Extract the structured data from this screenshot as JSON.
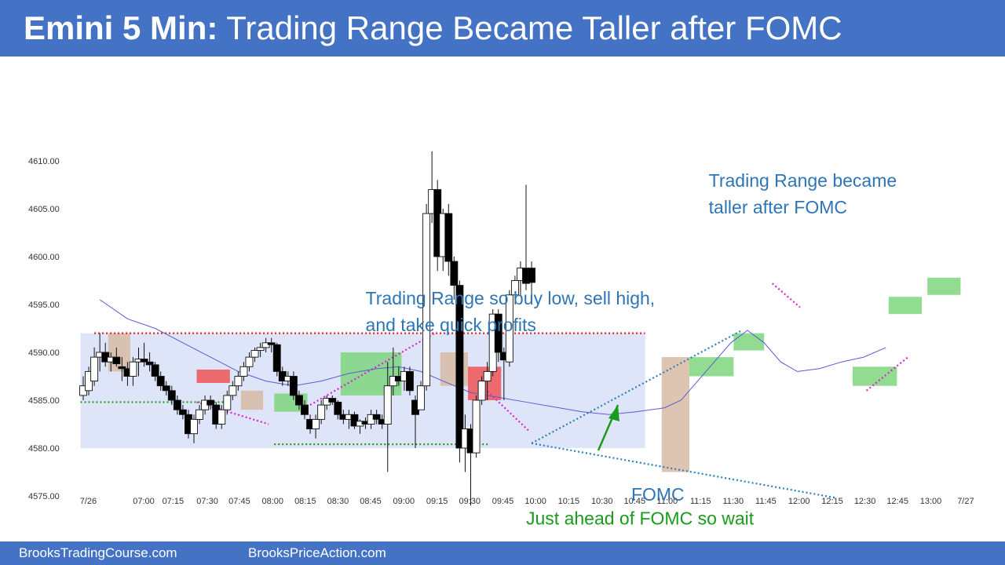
{
  "header": {
    "title_bold": "Emini 5 Min:",
    "title_rest": " Trading Range Became Taller after FOMC"
  },
  "footer": {
    "left": "BrooksTradingCourse.com",
    "right": "BrooksPriceAction.com"
  },
  "colors": {
    "header_bg": "#4472c4",
    "bull_body": "#ffffff",
    "bear_body": "#000000",
    "range_box": "#dfe5f8",
    "ma_line": "#5a5ad6",
    "green_highlight": "#7fd67f",
    "red_highlight": "#ee5555",
    "tan_highlight": "#d8bba5",
    "blue_text": "#2e75b6",
    "green_text": "#1a9a1a"
  },
  "chart_data": {
    "type": "candlestick",
    "ylim": [
      4573,
      4612
    ],
    "yticks": [
      "4610.00",
      "4605.00",
      "4600.00",
      "4595.00",
      "4590.00",
      "4585.00",
      "4580.00",
      "4575.00"
    ],
    "ytick_values": [
      4610,
      4605,
      4600,
      4595,
      4590,
      4585,
      4580,
      4575
    ],
    "xticks": [
      "7/26",
      "07:00",
      "07:15",
      "07:30",
      "07:45",
      "08:00",
      "08:15",
      "08:30",
      "08:45",
      "09:00",
      "09:15",
      "09:30",
      "09:45",
      "10:00",
      "10:15",
      "10:30",
      "10:45",
      "11:00",
      "11:15",
      "11:30",
      "11:45",
      "12:00",
      "12:15",
      "12:30",
      "12:45",
      "13:00",
      "7/27"
    ],
    "candles": [
      [
        4585.5,
        4587.5,
        4585.0,
        4586.5
      ],
      [
        4586.0,
        4588.5,
        4585.5,
        4588.0
      ],
      [
        4587.0,
        4590.5,
        4586.5,
        4589.5
      ],
      [
        4589.5,
        4592.0,
        4588.0,
        4590.0
      ],
      [
        4590.0,
        4591.0,
        4588.5,
        4589.0
      ],
      [
        4589.0,
        4590.0,
        4588.0,
        4589.5
      ],
      [
        4589.5,
        4590.5,
        4588.5,
        4588.8
      ],
      [
        4588.5,
        4589.5,
        4587.0,
        4588.3
      ],
      [
        4588.3,
        4589.0,
        4586.5,
        4587.5
      ],
      [
        4587.5,
        4589.5,
        4586.5,
        4589.0
      ],
      [
        4589.0,
        4590.5,
        4587.5,
        4589.3
      ],
      [
        4589.3,
        4591.0,
        4588.5,
        4589.0
      ],
      [
        4589.0,
        4590.0,
        4588.0,
        4588.7
      ],
      [
        4588.7,
        4589.0,
        4587.0,
        4587.5
      ],
      [
        4587.5,
        4588.0,
        4586.0,
        4586.5
      ],
      [
        4586.5,
        4587.0,
        4585.5,
        4586.0
      ],
      [
        4586.0,
        4586.5,
        4584.5,
        4585.0
      ],
      [
        4585.0,
        4585.5,
        4583.5,
        4584.0
      ],
      [
        4584.0,
        4584.5,
        4583.0,
        4583.5
      ],
      [
        4583.5,
        4584.0,
        4581.0,
        4581.5
      ],
      [
        4581.5,
        4583.5,
        4580.5,
        4583.0
      ],
      [
        4583.0,
        4584.5,
        4582.5,
        4584.0
      ],
      [
        4584.0,
        4585.5,
        4583.5,
        4585.0
      ],
      [
        4585.0,
        4585.5,
        4584.0,
        4584.5
      ],
      [
        4584.5,
        4584.8,
        4582.0,
        4582.5
      ],
      [
        4582.5,
        4584.5,
        4582.0,
        4584.0
      ],
      [
        4584.0,
        4586.0,
        4583.5,
        4585.5
      ],
      [
        4585.5,
        4587.0,
        4585.0,
        4586.5
      ],
      [
        4586.5,
        4588.0,
        4586.0,
        4587.5
      ],
      [
        4587.5,
        4589.0,
        4587.0,
        4588.5
      ],
      [
        4588.5,
        4590.0,
        4588.0,
        4589.5
      ],
      [
        4589.5,
        4590.5,
        4589.0,
        4590.2
      ],
      [
        4590.2,
        4591.0,
        4589.5,
        4590.5
      ],
      [
        4590.5,
        4591.5,
        4590.0,
        4591.0
      ],
      [
        4591.0,
        4591.5,
        4590.0,
        4590.8
      ],
      [
        4590.8,
        4591.0,
        4587.5,
        4588.0
      ],
      [
        4588.0,
        4588.5,
        4586.5,
        4587.0
      ],
      [
        4587.0,
        4588.0,
        4586.5,
        4587.5
      ],
      [
        4587.5,
        4588.0,
        4585.0,
        4585.5
      ],
      [
        4585.5,
        4586.0,
        4584.0,
        4584.5
      ],
      [
        4584.5,
        4585.0,
        4583.0,
        4583.5
      ],
      [
        4583.0,
        4583.5,
        4581.5,
        4582.0
      ],
      [
        4582.0,
        4583.5,
        4581.0,
        4583.0
      ],
      [
        4583.0,
        4585.0,
        4582.5,
        4584.5
      ],
      [
        4584.5,
        4585.5,
        4584.0,
        4585.2
      ],
      [
        4585.2,
        4585.5,
        4584.5,
        4584.8
      ],
      [
        4584.8,
        4585.0,
        4583.0,
        4583.5
      ],
      [
        4583.5,
        4584.0,
        4582.5,
        4583.0
      ],
      [
        4583.0,
        4584.0,
        4582.0,
        4583.5
      ],
      [
        4583.5,
        4583.8,
        4582.0,
        4582.3
      ],
      [
        4582.3,
        4583.0,
        4581.5,
        4582.8
      ],
      [
        4582.8,
        4583.2,
        4582.0,
        4582.5
      ],
      [
        4582.5,
        4584.0,
        4582.0,
        4583.5
      ],
      [
        4583.5,
        4584.0,
        4582.5,
        4583.0
      ],
      [
        4583.0,
        4583.5,
        4582.0,
        4582.5
      ],
      [
        4582.5,
        4589.0,
        4577.5,
        4586.5
      ],
      [
        4586.5,
        4590.5,
        4585.5,
        4587.5
      ],
      [
        4587.5,
        4588.5,
        4586.5,
        4587.0
      ],
      [
        4587.0,
        4588.5,
        4586.0,
        4588.0
      ],
      [
        4588.0,
        4588.5,
        4585.5,
        4586.0
      ],
      [
        4585.0,
        4585.5,
        4580.0,
        4583.5
      ],
      [
        4584.0,
        4587.0,
        4584.0,
        4586.5
      ],
      [
        4586.5,
        4605.5,
        4586.0,
        4604.5
      ],
      [
        4604.5,
        4611.0,
        4603.5,
        4607.0
      ],
      [
        4607.0,
        4608.0,
        4598.5,
        4600.0
      ],
      [
        4600.0,
        4605.0,
        4598.5,
        4604.5
      ],
      [
        4604.5,
        4605.5,
        4598.0,
        4599.5
      ],
      [
        4599.5,
        4600.0,
        4595.5,
        4597.0
      ],
      [
        4597.0,
        4597.5,
        4578.5,
        4580.0
      ],
      [
        4580.0,
        4583.5,
        4577.5,
        4582.0
      ],
      [
        4582.0,
        4582.5,
        4574.0,
        4579.5
      ],
      [
        4579.5,
        4585.5,
        4579.0,
        4585.0
      ],
      [
        4585.0,
        4587.5,
        4584.5,
        4587.0
      ],
      [
        4587.0,
        4589.0,
        4585.0,
        4588.0
      ],
      [
        4588.0,
        4594.5,
        4587.5,
        4594.0
      ],
      [
        4594.0,
        4594.5,
        4589.0,
        4590.0
      ],
      [
        4590.0,
        4590.5,
        4585.0,
        4589.2
      ],
      [
        4589.0,
        4596.5,
        4588.5,
        4596.0
      ],
      [
        4596.0,
        4598.0,
        4595.5,
        4597.5
      ],
      [
        4597.5,
        4599.5,
        4596.0,
        4598.8
      ],
      [
        4598.8,
        4607.5,
        4596.5,
        4597.2
      ],
      [
        4598.8,
        4599.5,
        4595.0,
        4597.3
      ]
    ],
    "moving_average": [
      [
        3,
        4595.5
      ],
      [
        8,
        4593.5
      ],
      [
        13,
        4592.5
      ],
      [
        18,
        4591.0
      ],
      [
        23,
        4589.5
      ],
      [
        28,
        4588.0
      ],
      [
        33,
        4587.0
      ],
      [
        38,
        4586.5
      ],
      [
        43,
        4587.0
      ],
      [
        48,
        4587.8
      ],
      [
        53,
        4588.3
      ],
      [
        57,
        4588.5
      ],
      [
        61,
        4588.0
      ],
      [
        65,
        4587.0
      ],
      [
        70,
        4585.8
      ],
      [
        75,
        4585.3
      ],
      [
        80,
        4584.8
      ],
      [
        85,
        4584.3
      ],
      [
        90,
        4583.8
      ],
      [
        95,
        4583.5
      ],
      [
        100,
        4583.8
      ],
      [
        105,
        4584.2
      ],
      [
        108,
        4585.0
      ],
      [
        111,
        4587.0
      ],
      [
        114,
        4589.0
      ],
      [
        117,
        4591.0
      ],
      [
        120,
        4592.3
      ],
      [
        123,
        4591.0
      ],
      [
        126,
        4589.0
      ],
      [
        129,
        4588.0
      ],
      [
        133,
        4588.3
      ],
      [
        137,
        4589.0
      ],
      [
        141,
        4589.5
      ],
      [
        145,
        4590.5
      ]
    ],
    "range_box": {
      "x_from": -0.5,
      "x_to": 101.5,
      "y_from": 4580,
      "y_to": 4592
    },
    "annotations": [
      {
        "text_lines": [
          "Trading Range so buy low, sell high,",
          "and take quick profits"
        ],
        "x": 51,
        "y": 4595.0,
        "color": "#2e75b6"
      },
      {
        "text_lines": [
          "Trading Range became",
          "taller after FOMC"
        ],
        "x": 113,
        "y": 4607.3,
        "color": "#2e75b6"
      },
      {
        "text_lines": [
          "FOMC"
        ],
        "x": 99,
        "y": 4574.5,
        "color": "#2e75b6"
      },
      {
        "text_lines": [
          "Just ahead of FOMC so wait"
        ],
        "x": 80,
        "y": 4572.0,
        "color": "#1a9a1a"
      }
    ]
  }
}
